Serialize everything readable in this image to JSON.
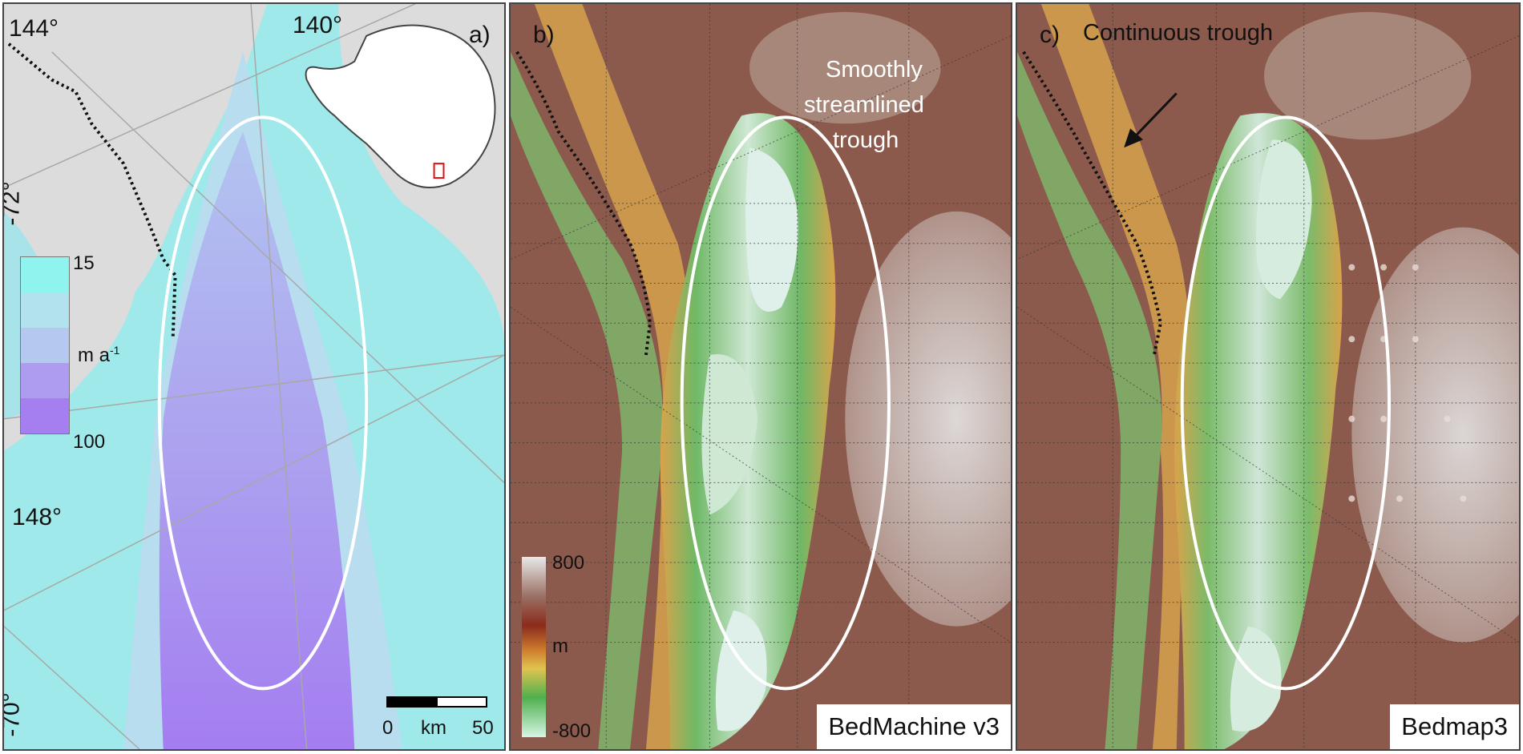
{
  "panel_a": {
    "label": "a)",
    "lon_labels": [
      "144°",
      "140°",
      "148°"
    ],
    "lat_labels": [
      "-72°",
      "-70°"
    ],
    "legend": {
      "max_label": "15",
      "unit_label": "m a",
      "unit_sup": "-1",
      "min_label": "100",
      "colors": [
        "#8ff3ee",
        "#b2e2ee",
        "#b4c8f0",
        "#ad9cf0",
        "#a57ef0"
      ]
    },
    "scale": {
      "zero": "0",
      "unit": "km",
      "max": "50"
    },
    "colors": {
      "land": "#dcdcdc",
      "fast_flow": "#9fe9ea",
      "trough_flow": "#9f86ef",
      "ellipse": "#ffffff",
      "inset_box": "#e01010"
    }
  },
  "panel_b": {
    "label": "b)",
    "annotation_lines": [
      "Smoothly",
      "streamlined",
      "trough"
    ],
    "dataset_label": "BedMachine v3",
    "legend": {
      "max_label": "800",
      "unit_label": "m",
      "min_label": "-800"
    },
    "colors": {
      "high": "#e8e8e8",
      "mid_high": "#8c5a4c",
      "mid": "#d9a34a",
      "low": "#5caf5c",
      "lowest": "#d6f0e2"
    }
  },
  "panel_c": {
    "label": "c)",
    "annotation": "Continuous trough",
    "dataset_label": "Bedmap3"
  }
}
